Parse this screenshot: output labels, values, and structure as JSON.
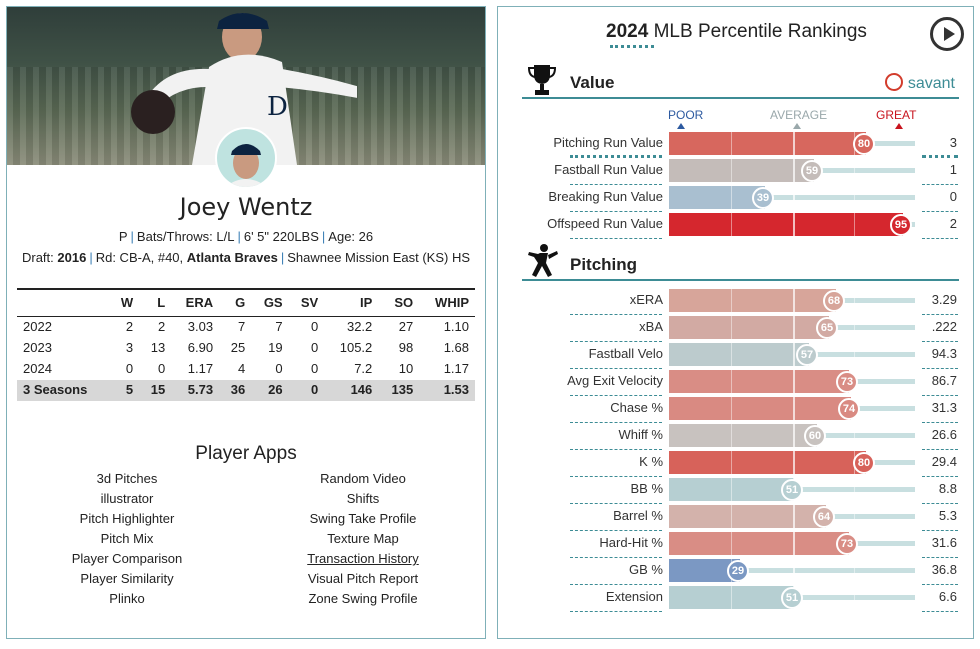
{
  "player": {
    "name": "Joey Wentz",
    "bio": {
      "position": "P",
      "bats_throws": "Bats/Throws: L/L",
      "height_weight": "6' 5\" 220LBS",
      "age": "Age: 26"
    },
    "draft": {
      "label": "Draft:",
      "year": "2016",
      "round": "Rd: CB-A, #40,",
      "team": "Atlanta Braves",
      "school": "Shawnee Mission East (KS) HS"
    }
  },
  "stats_table": {
    "columns": [
      "",
      "W",
      "L",
      "ERA",
      "G",
      "GS",
      "SV",
      "IP",
      "SO",
      "WHIP"
    ],
    "rows": [
      [
        "2022",
        "2",
        "2",
        "3.03",
        "7",
        "7",
        "0",
        "32.2",
        "27",
        "1.10"
      ],
      [
        "2023",
        "3",
        "13",
        "6.90",
        "25",
        "19",
        "0",
        "105.2",
        "98",
        "1.68"
      ],
      [
        "2024",
        "0",
        "0",
        "1.17",
        "4",
        "0",
        "0",
        "7.2",
        "10",
        "1.17"
      ]
    ],
    "total": [
      "3 Seasons",
      "5",
      "15",
      "5.73",
      "36",
      "26",
      "0",
      "146",
      "135",
      "1.53"
    ]
  },
  "player_apps": {
    "title": "Player Apps",
    "left": [
      "3d Pitches",
      "illustrator",
      "Pitch Highlighter",
      "Pitch Mix",
      "Player Comparison",
      "Player Similarity",
      "Plinko"
    ],
    "right": [
      "Random Video",
      "Shifts",
      "Swing Take Profile",
      "Texture Map",
      "Transaction History",
      "Visual Pitch Report",
      "Zone Swing Profile"
    ]
  },
  "rankings": {
    "title_year": "2024",
    "title_text": "MLB Percentile Rankings",
    "brand": "savant",
    "scale": {
      "poor": "POOR",
      "average": "AVERAGE",
      "great": "GREAT"
    },
    "sections": {
      "value": {
        "title": "Value",
        "metrics": [
          {
            "label": "Pitching Run Value",
            "percentile": 80,
            "value": "3",
            "color": "#d7675e"
          },
          {
            "label": "Fastball Run Value",
            "percentile": 59,
            "value": "1",
            "color": "#c4bcb9"
          },
          {
            "label": "Breaking Run Value",
            "percentile": 39,
            "value": "0",
            "color": "#a9bfd0"
          },
          {
            "label": "Offspeed Run Value",
            "percentile": 95,
            "value": "2",
            "color": "#d5272e"
          }
        ]
      },
      "pitching": {
        "title": "Pitching",
        "metrics": [
          {
            "label": "xERA",
            "percentile": 68,
            "value": "3.29",
            "color": "#d7a59a"
          },
          {
            "label": "xBA",
            "percentile": 65,
            "value": ".222",
            "color": "#d2aaa3"
          },
          {
            "label": "Fastball Velo",
            "percentile": 57,
            "value": "94.3",
            "color": "#bccbcd"
          },
          {
            "label": "Avg Exit Velocity",
            "percentile": 73,
            "value": "86.7",
            "color": "#d98d85"
          },
          {
            "label": "Chase %",
            "percentile": 74,
            "value": "31.3",
            "color": "#d98a82"
          },
          {
            "label": "Whiff %",
            "percentile": 60,
            "value": "26.6",
            "color": "#c8c2bf"
          },
          {
            "label": "K %",
            "percentile": 80,
            "value": "29.4",
            "color": "#d7625a"
          },
          {
            "label": "BB %",
            "percentile": 51,
            "value": "8.8",
            "color": "#b6cfd2"
          },
          {
            "label": "Barrel %",
            "percentile": 64,
            "value": "5.3",
            "color": "#d3b2ab"
          },
          {
            "label": "Hard-Hit %",
            "percentile": 73,
            "value": "31.6",
            "color": "#d98d85"
          },
          {
            "label": "GB %",
            "percentile": 29,
            "value": "36.8",
            "color": "#7b98c3"
          },
          {
            "label": "Extension",
            "percentile": 51,
            "value": "6.6",
            "color": "#b6cfd2"
          }
        ]
      }
    }
  }
}
